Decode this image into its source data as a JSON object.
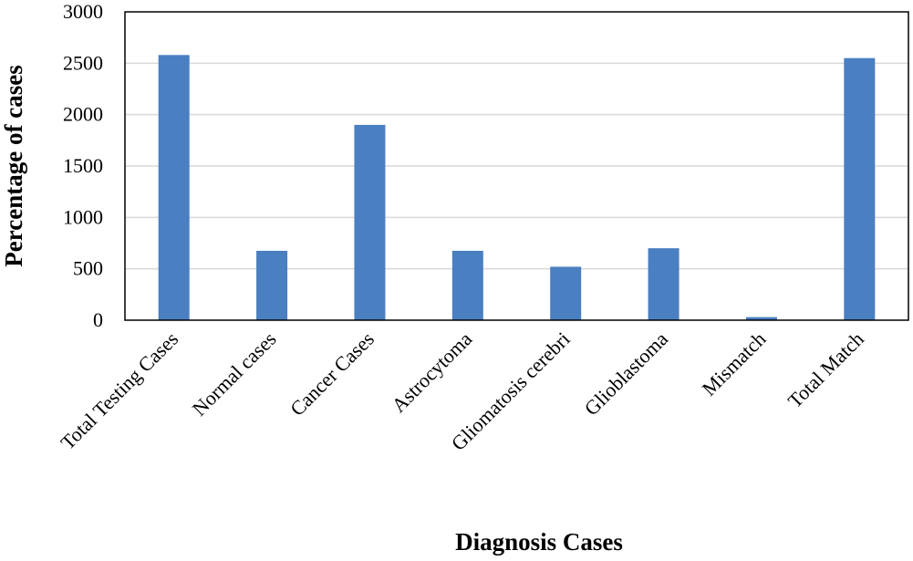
{
  "chart_data": {
    "type": "bar",
    "title": "",
    "xlabel": "Diagnosis Cases",
    "ylabel": "Percentage of cases",
    "categories": [
      "Total Testing Cases",
      "Normal cases",
      "Cancer  Cases",
      "Astrocytoma",
      "Gliomatosis cerebri",
      "Glioblastoma",
      "Mismatch",
      "Total Match"
    ],
    "values": [
      2580,
      675,
      1900,
      675,
      520,
      700,
      30,
      2550
    ],
    "ylim": [
      0,
      3000
    ],
    "yticks": [
      0,
      500,
      1000,
      1500,
      2000,
      2500,
      3000
    ],
    "grid": true,
    "legend": "none",
    "colors": {
      "bar": "#4a7fc1",
      "grid": "#d9d9d9",
      "frame": "#000000"
    }
  }
}
